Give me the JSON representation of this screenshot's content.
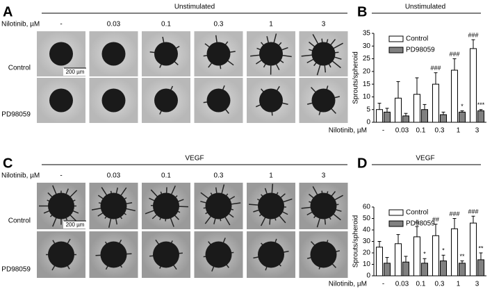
{
  "panels": [
    {
      "label": "A",
      "header": "Unstimulated",
      "dose_label": "Nilotinib, µM",
      "doses": [
        "-",
        "0.03",
        "0.1",
        "0.3",
        "1",
        "3"
      ],
      "rows": [
        "Control",
        "PD98059"
      ],
      "scale_bar": "200 µm"
    },
    {
      "label": "C",
      "header": "VEGF",
      "dose_label": "Nilotinib, µM",
      "doses": [
        "-",
        "0.03",
        "0.1",
        "0.3",
        "1",
        "3"
      ],
      "rows": [
        "Control",
        "PD98059"
      ],
      "scale_bar": "200 µm"
    }
  ],
  "chart_data": [
    {
      "type": "bar",
      "panel": "B",
      "title": "Unstimulated",
      "ylabel": "Sprouts/spheroid",
      "xlabel": "Nilotinib, µM",
      "categories": [
        "-",
        "0.03",
        "0.1",
        "0.3",
        "1",
        "3"
      ],
      "series": [
        {
          "name": "Control",
          "color": "#ffffff",
          "values": [
            5,
            9.5,
            11,
            15,
            20.5,
            29
          ],
          "errors": [
            2.5,
            6.5,
            6.5,
            4.5,
            4.5,
            3.5
          ],
          "annotations": [
            null,
            null,
            null,
            "###",
            "###",
            "###"
          ]
        },
        {
          "name": "PD98059",
          "color": "#808080",
          "values": [
            4,
            2.5,
            5,
            3,
            4,
            4.5
          ],
          "errors": [
            1.5,
            1,
            2,
            1,
            0.5,
            0.5
          ],
          "annotations": [
            null,
            null,
            null,
            null,
            "*",
            "***"
          ]
        }
      ],
      "ylim": [
        0,
        35
      ],
      "yticks": [
        0,
        5,
        10,
        15,
        20,
        25,
        30,
        35
      ],
      "legend": "top-left"
    },
    {
      "type": "bar",
      "panel": "D",
      "title": "VEGF",
      "ylabel": "Sprouts/spheroid",
      "xlabel": "Nilotinib, µM",
      "categories": [
        "-",
        "0.03",
        "0.1",
        "0.3",
        "1",
        "3"
      ],
      "series": [
        {
          "name": "Control",
          "color": "#ffffff",
          "values": [
            25,
            28,
            34,
            35,
            41,
            46
          ],
          "errors": [
            5,
            8,
            9,
            10,
            9,
            6
          ],
          "annotations": [
            null,
            null,
            "#",
            "##",
            "###",
            "###"
          ]
        },
        {
          "name": "PD98059",
          "color": "#808080",
          "values": [
            11,
            12,
            11,
            13,
            11,
            14
          ],
          "errors": [
            5,
            5,
            4,
            5,
            2,
            6
          ],
          "annotations": [
            null,
            null,
            "*",
            "*",
            "**",
            "**"
          ]
        }
      ],
      "ylim": [
        0,
        60
      ],
      "yticks": [
        0,
        10,
        20,
        30,
        40,
        50,
        60
      ],
      "legend": "top-left"
    }
  ]
}
